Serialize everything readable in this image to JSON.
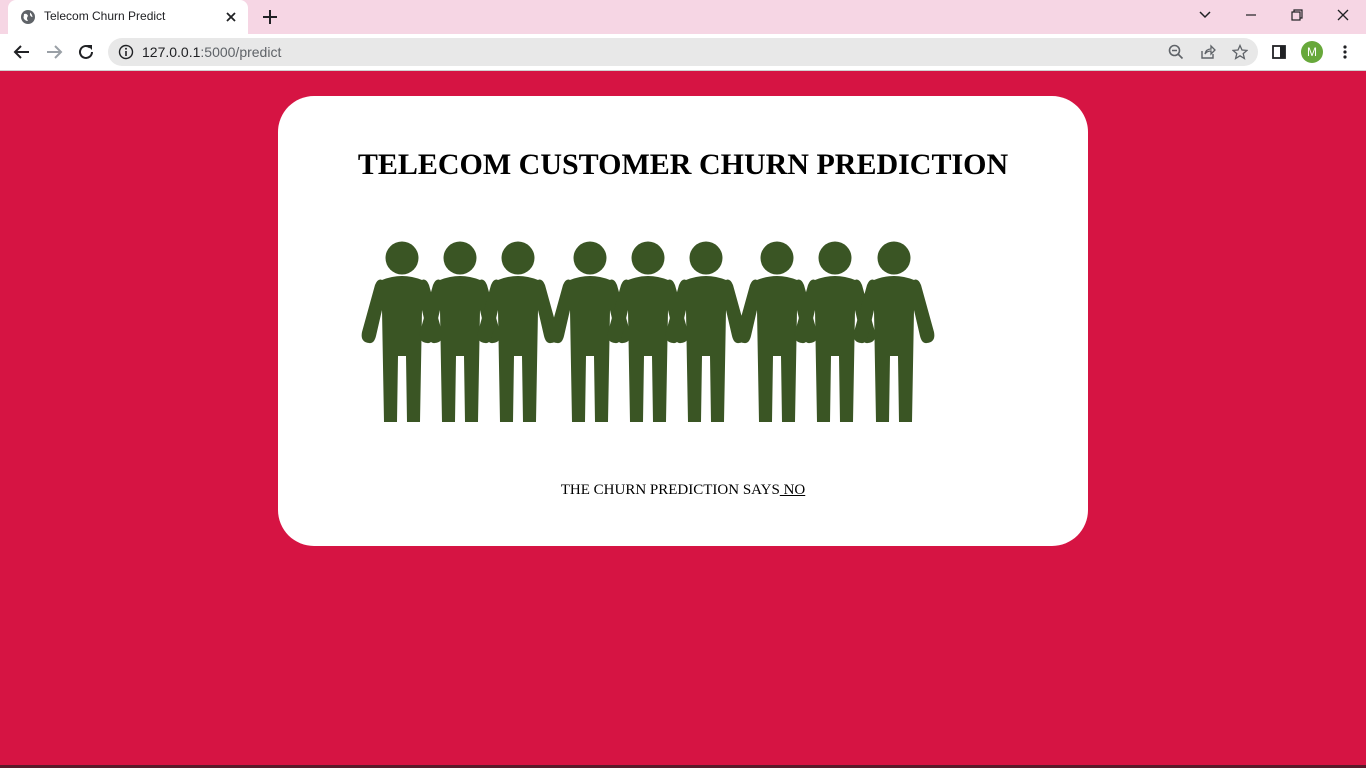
{
  "browser": {
    "tab_title": "Telecom Churn Predict",
    "url_host": "127.0.0.1",
    "url_rest": ":5000/predict",
    "profile_initial": "M",
    "colors": {
      "tabbar": "#f6d6e4",
      "avatar": "#67a83a"
    }
  },
  "page": {
    "title": "TELECOM CUSTOMER CHURN PREDICTION",
    "result_prefix": "THE CHURN PREDICTION SAYS",
    "result_value": " NO",
    "image_alt": "people-group-icon",
    "colors": {
      "background": "#d61443",
      "card": "#ffffff",
      "figures": "#3a5524"
    }
  }
}
